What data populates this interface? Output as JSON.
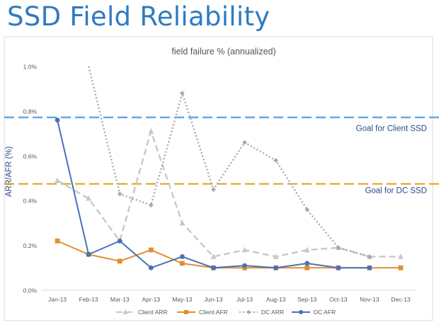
{
  "slide": {
    "title": "SSD Field Reliability"
  },
  "chart_data": {
    "type": "line",
    "title": "field failure % (annualized)",
    "ylabel": "ARR/AFR   (%)",
    "xlabel": "",
    "categories": [
      "Jan-13",
      "Feb-13",
      "Mar-13",
      "Apr-13",
      "May-13",
      "Jun-13",
      "Jul-13",
      "Aug-13",
      "Sep-13",
      "Oct-13",
      "Nov-13",
      "Dec-13"
    ],
    "ylim": [
      0,
      1.0
    ],
    "yticks": [
      0,
      0.2,
      0.4,
      0.6,
      0.8,
      1.0
    ],
    "ytick_labels": [
      "0.0%",
      "0.2%",
      "0.4%",
      "0.6%",
      "0.8%",
      "1.0%"
    ],
    "series": [
      {
        "name": "Client ARR",
        "color": "#c8c8c8",
        "style": "dashed",
        "marker": "triangle",
        "values": [
          0.49,
          0.41,
          0.22,
          0.71,
          0.3,
          0.15,
          0.18,
          0.15,
          0.18,
          0.19,
          0.15,
          0.15
        ]
      },
      {
        "name": "Client AFR",
        "color": "#e08f2d",
        "style": "solid",
        "marker": "square",
        "values": [
          0.22,
          0.16,
          0.13,
          0.18,
          0.12,
          0.1,
          0.1,
          0.1,
          0.1,
          0.1,
          0.1,
          0.1
        ]
      },
      {
        "name": "DC ARR",
        "color": "#a9a9a9",
        "style": "dotted",
        "marker": "diamond",
        "values": [
          null,
          1.0,
          0.43,
          0.38,
          0.88,
          0.45,
          0.66,
          0.58,
          0.36,
          0.19,
          0.15,
          null
        ],
        "start_value": 1.0
      },
      {
        "name": "DC AFR",
        "color": "#4672b8",
        "style": "solid",
        "marker": "circle",
        "values": [
          0.76,
          0.16,
          0.22,
          0.1,
          0.15,
          0.1,
          0.11,
          0.1,
          0.12,
          0.1,
          0.1,
          null
        ]
      }
    ],
    "goal_lines": [
      {
        "label": "Goal  for Client SSD",
        "value": 0.772,
        "color": "#5aa1e0"
      },
      {
        "label": "Goal  for DC SSD",
        "value": 0.475,
        "color": "#e5a21a"
      }
    ],
    "legend_position": "bottom",
    "grid": false
  }
}
